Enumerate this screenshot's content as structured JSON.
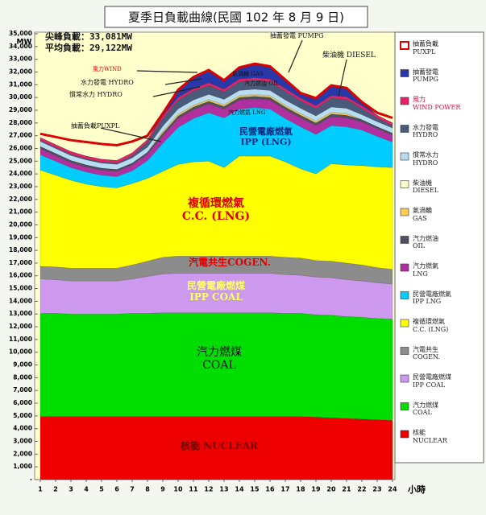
{
  "chart_data": {
    "type": "stacked-area",
    "title": "夏季日負載曲線(民國 102 年 8 月 9 日)",
    "y_label": "MW",
    "x_label": "小時",
    "x": [
      1,
      2,
      3,
      4,
      5,
      6,
      7,
      8,
      9,
      10,
      11,
      12,
      13,
      14,
      15,
      16,
      17,
      18,
      19,
      20,
      21,
      22,
      23,
      24
    ],
    "xlim": [
      1,
      24
    ],
    "xticks": [
      1,
      2,
      3,
      4,
      5,
      6,
      7,
      8,
      9,
      10,
      11,
      12,
      13,
      14,
      15,
      16,
      17,
      18,
      19,
      20,
      21,
      22,
      23,
      24
    ],
    "ylim": [
      0,
      35000
    ],
    "yticks": [
      {
        "value": 0,
        "label": "-"
      },
      {
        "value": 1000,
        "label": "1,000"
      },
      {
        "value": 2000,
        "label": "2,000"
      },
      {
        "value": 3000,
        "label": "3,000"
      },
      {
        "value": 4000,
        "label": "4,000"
      },
      {
        "value": 5000,
        "label": "5,000"
      },
      {
        "value": 6000,
        "label": "6,000"
      },
      {
        "value": 7000,
        "label": "7,000"
      },
      {
        "value": 8000,
        "label": "8,000"
      },
      {
        "value": 9000,
        "label": "9,000"
      },
      {
        "value": 10000,
        "label": "10,000"
      },
      {
        "value": 11000,
        "label": "11,000"
      },
      {
        "value": 12000,
        "label": "12,000"
      },
      {
        "value": 13000,
        "label": "13,000"
      },
      {
        "value": 14000,
        "label": "14,000"
      },
      {
        "value": 15000,
        "label": "15,000"
      },
      {
        "value": 16000,
        "label": "16,000"
      },
      {
        "value": 17000,
        "label": "17,000"
      },
      {
        "value": 18000,
        "label": "18,000"
      },
      {
        "value": 19000,
        "label": "19,000"
      },
      {
        "value": 20000,
        "label": "20,000"
      },
      {
        "value": 21000,
        "label": "21,000"
      },
      {
        "value": 22000,
        "label": "22,000"
      },
      {
        "value": 23000,
        "label": "23,000"
      },
      {
        "value": 24000,
        "label": "24,000"
      },
      {
        "value": 25000,
        "label": "25,000"
      },
      {
        "value": 26000,
        "label": "26,000"
      },
      {
        "value": 27000,
        "label": "27,000"
      },
      {
        "value": 28000,
        "label": "28,000"
      },
      {
        "value": 29000,
        "label": "29,000"
      },
      {
        "value": 30000,
        "label": "30,000"
      },
      {
        "value": 31000,
        "label": "31,000"
      },
      {
        "value": 32000,
        "label": "32,000"
      },
      {
        "value": 33000,
        "label": "33,000"
      },
      {
        "value": 34000,
        "label": "34,000"
      },
      {
        "value": 35000,
        "label": "35,000"
      }
    ],
    "series": [
      {
        "name": "抽蓄負載\nPUXPL",
        "color": "#dd0000",
        "values": [
          300,
          600,
          900,
          1100,
          1200,
          1200,
          900,
          300,
          0,
          0,
          0,
          0,
          0,
          0,
          0,
          0,
          0,
          0,
          0,
          0,
          0,
          0,
          200,
          400
        ]
      },
      {
        "name": "抽蓄發電\nPUMPG",
        "color": "#2838a8",
        "values": [
          0,
          0,
          0,
          0,
          0,
          0,
          0,
          0,
          200,
          600,
          900,
          1000,
          700,
          900,
          1100,
          1000,
          700,
          400,
          600,
          800,
          700,
          300,
          0,
          0
        ]
      },
      {
        "name": "風力\nWIND POWER",
        "color": "#e8206a",
        "values": [
          200,
          200,
          200,
          200,
          200,
          200,
          200,
          200,
          200,
          200,
          200,
          200,
          200,
          200,
          200,
          200,
          200,
          200,
          200,
          200,
          200,
          200,
          200,
          200
        ]
      },
      {
        "name": "水力發電\nHYDRO",
        "color": "#4a5a7a",
        "values": [
          100,
          100,
          100,
          100,
          100,
          100,
          200,
          400,
          600,
          700,
          700,
          700,
          600,
          700,
          700,
          700,
          700,
          600,
          600,
          700,
          700,
          500,
          300,
          200
        ]
      },
      {
        "name": "慣常水力\nHYDRO",
        "color": "#b8dcf0",
        "values": [
          400,
          400,
          400,
          400,
          400,
          400,
          400,
          400,
          400,
          400,
          400,
          400,
          400,
          400,
          400,
          400,
          400,
          400,
          400,
          400,
          400,
          400,
          400,
          400
        ]
      },
      {
        "name": "柴油機\nDIESEL",
        "color": "#ffffcc",
        "values": [
          0,
          0,
          0,
          0,
          0,
          0,
          0,
          0,
          50,
          50,
          50,
          50,
          50,
          50,
          50,
          50,
          50,
          50,
          50,
          50,
          50,
          0,
          0,
          0
        ]
      },
      {
        "name": "氣渦輪\nGAS",
        "color": "#ffcc55",
        "values": [
          0,
          0,
          0,
          0,
          0,
          0,
          0,
          0,
          100,
          100,
          100,
          100,
          100,
          100,
          100,
          100,
          100,
          100,
          100,
          100,
          100,
          0,
          0,
          0
        ]
      },
      {
        "name": "汽力燃油\nOIL",
        "color": "#505060",
        "values": [
          150,
          150,
          150,
          150,
          150,
          150,
          150,
          150,
          200,
          200,
          200,
          200,
          200,
          200,
          200,
          200,
          200,
          200,
          200,
          200,
          200,
          150,
          150,
          150
        ]
      },
      {
        "name": "汽力燃氣\nLNG",
        "color": "#b030a0",
        "values": [
          500,
          450,
          400,
          400,
          400,
          400,
          450,
          500,
          600,
          700,
          700,
          700,
          700,
          700,
          700,
          700,
          700,
          700,
          700,
          700,
          700,
          650,
          600,
          550
        ]
      },
      {
        "name": "民營電廠燃氣\nIPP LNG",
        "color": "#00ccff",
        "values": [
          1200,
          1100,
          1000,
          950,
          900,
          900,
          1000,
          1400,
          2200,
          2900,
          3400,
          3800,
          3900,
          3700,
          3800,
          3700,
          3400,
          3300,
          3100,
          3000,
          3000,
          2800,
          2400,
          2000
        ]
      },
      {
        "name": "複循環燃氣\nC.C. (LNG)",
        "color": "#ffff00",
        "values": [
          7550,
          7200,
          6900,
          6600,
          6400,
          6300,
          6400,
          6500,
          6750,
          7200,
          7400,
          7450,
          6950,
          7850,
          7850,
          7850,
          7500,
          7000,
          6800,
          7650,
          7700,
          7800,
          7900,
          8000
        ]
      },
      {
        "name": "汽電共生\nCOGEN.",
        "color": "#8c8c8c",
        "values": [
          1000,
          1000,
          1000,
          1000,
          1000,
          1000,
          1100,
          1200,
          1300,
          1350,
          1350,
          1350,
          1350,
          1350,
          1350,
          1350,
          1350,
          1350,
          1300,
          1300,
          1300,
          1250,
          1200,
          1150
        ]
      },
      {
        "name": "民營電廠燃煤\nIPP COAL",
        "color": "#cc99ee",
        "values": [
          2700,
          2650,
          2600,
          2600,
          2600,
          2600,
          2700,
          2900,
          3050,
          3100,
          3100,
          3100,
          3100,
          3100,
          3100,
          3100,
          3050,
          3000,
          2950,
          2950,
          2900,
          2850,
          2800,
          2750
        ]
      },
      {
        "name": "汽力燃煤\nCOAL",
        "color": "#00dd00",
        "values": [
          8100,
          8100,
          8050,
          8050,
          8050,
          8050,
          8100,
          8100,
          8150,
          8150,
          8150,
          8150,
          8150,
          8150,
          8150,
          8150,
          8100,
          8100,
          8050,
          8050,
          8000,
          8000,
          7950,
          7950
        ]
      },
      {
        "name": "核能\nNUCLEAR",
        "color": "#ee0000",
        "values": [
          4950,
          4950,
          4950,
          4950,
          4950,
          4950,
          4950,
          4950,
          4950,
          4950,
          4950,
          4950,
          4950,
          4950,
          4950,
          4950,
          4950,
          4950,
          4900,
          4850,
          4800,
          4750,
          4700,
          4650
        ]
      }
    ],
    "annotations": [
      "尖峰負載：33,081MW",
      "平均負載：29,122MW",
      "抽蓄發電 PUMPG",
      "柴油機 DIESEL",
      "風力WIND",
      "水力發電 HYDRO",
      "慣常水力 HYDRO",
      "氣渦輪 GAS",
      "汽力燃油 OIL",
      "汽力燃氣 LNG",
      "抽蓄負載PUXPL",
      "民營電廠燃氣\nIPP (LNG)",
      "複循環燃氣\nC.C. (LNG)",
      "汽電共生COGEN.",
      "民營電廠燃煤\nIPP COAL",
      "汽力燃煤\nCOAL",
      "核能 NUCLEAR"
    ]
  }
}
